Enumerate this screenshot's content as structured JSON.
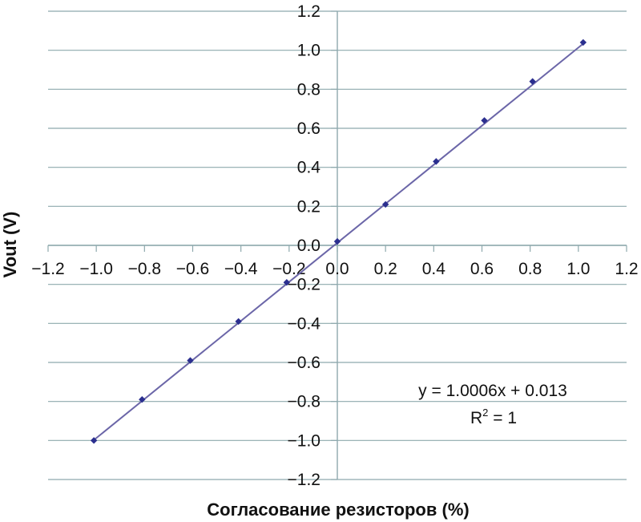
{
  "chart_data": {
    "type": "scatter",
    "title": "",
    "xlabel": "Согласование резисторов (%)",
    "ylabel": "Vout (V)",
    "xlim": [
      -1.2,
      1.2
    ],
    "ylim": [
      -1.2,
      1.2
    ],
    "xticks": [
      "−1.2",
      "−1.0",
      "−0.8",
      "−0.6",
      "−0.4",
      "−0.2",
      "0.0",
      "0.2",
      "0.4",
      "0.6",
      "0.8",
      "1.0",
      "1.2"
    ],
    "yticks": [
      "1.2",
      "1.0",
      "0.8",
      "0.6",
      "0.4",
      "0.2",
      "0.0",
      "−0.2",
      "−0.4",
      "−0.6",
      "−0.8",
      "−1.0",
      "−1.2"
    ],
    "grid": true,
    "series": [
      {
        "x": [
          -1.01,
          -0.81,
          -0.61,
          -0.41,
          -0.21,
          0.0,
          0.2,
          0.41,
          0.61,
          0.81,
          1.02
        ],
        "y": [
          -1.0,
          -0.79,
          -0.59,
          -0.39,
          -0.19,
          0.02,
          0.21,
          0.43,
          0.64,
          0.84,
          1.04
        ],
        "color": "#2b2f8f"
      }
    ],
    "trendline": {
      "slope": 1.0006,
      "intercept": 0.013,
      "color": "#6b66a8",
      "equation": "y = 1.0006x + 0.013",
      "r2_label": "R",
      "r2_sup": "2",
      "r2_value": " = 1"
    }
  }
}
